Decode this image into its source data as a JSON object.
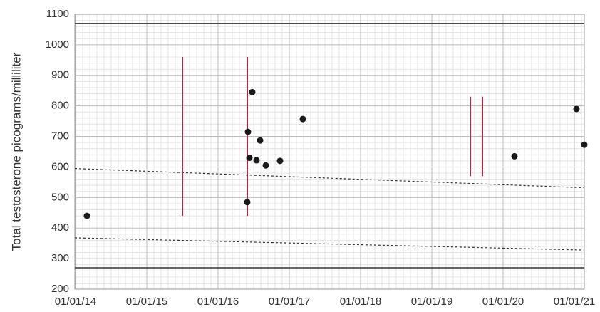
{
  "chart_data": {
    "type": "scatter",
    "y_label": "Total testosterone picograms/milliliter",
    "x": [
      2014.16,
      2016.41,
      2016.42,
      2016.44,
      2016.48,
      2016.54,
      2016.59,
      2016.67,
      2016.87,
      2017.19,
      2020.16,
      2021.03,
      2021.14
    ],
    "values": [
      440,
      485,
      715,
      630,
      845,
      622,
      687,
      605,
      620,
      757,
      635,
      790,
      673
    ],
    "color": "#1a1a1a",
    "xlim": [
      2013.99,
      2021.14
    ],
    "xticks": [
      {
        "value": 2014,
        "label": "01/01/14"
      },
      {
        "value": 2015,
        "label": "01/01/15"
      },
      {
        "value": 2016,
        "label": "01/01/16"
      },
      {
        "value": 2017,
        "label": "01/01/17"
      },
      {
        "value": 2018,
        "label": "01/01/18"
      },
      {
        "value": 2019,
        "label": "01/01/19"
      },
      {
        "value": 2020,
        "label": "01/01/20"
      },
      {
        "value": 2021,
        "label": "01/01/21"
      }
    ],
    "ylim": [
      200,
      1100
    ],
    "yticks": [
      200,
      300,
      400,
      500,
      600,
      700,
      800,
      900,
      1000,
      1100
    ],
    "grid": true,
    "minor_grid": true,
    "ranges": {
      "color": "#a0304a",
      "x": [
        2015.5,
        2016.41,
        2019.54,
        2019.71
      ],
      "low": [
        440,
        440,
        570,
        570
      ],
      "high": [
        960,
        960,
        830,
        830
      ]
    },
    "reference_lines": {
      "color": "#333333",
      "values": [
        1070,
        270
      ]
    },
    "trend_lines": [
      {
        "x": [
          2013.99,
          2021.14
        ],
        "values": [
          595,
          532
        ]
      },
      {
        "x": [
          2013.99,
          2021.14
        ],
        "values": [
          368,
          328
        ]
      }
    ]
  }
}
